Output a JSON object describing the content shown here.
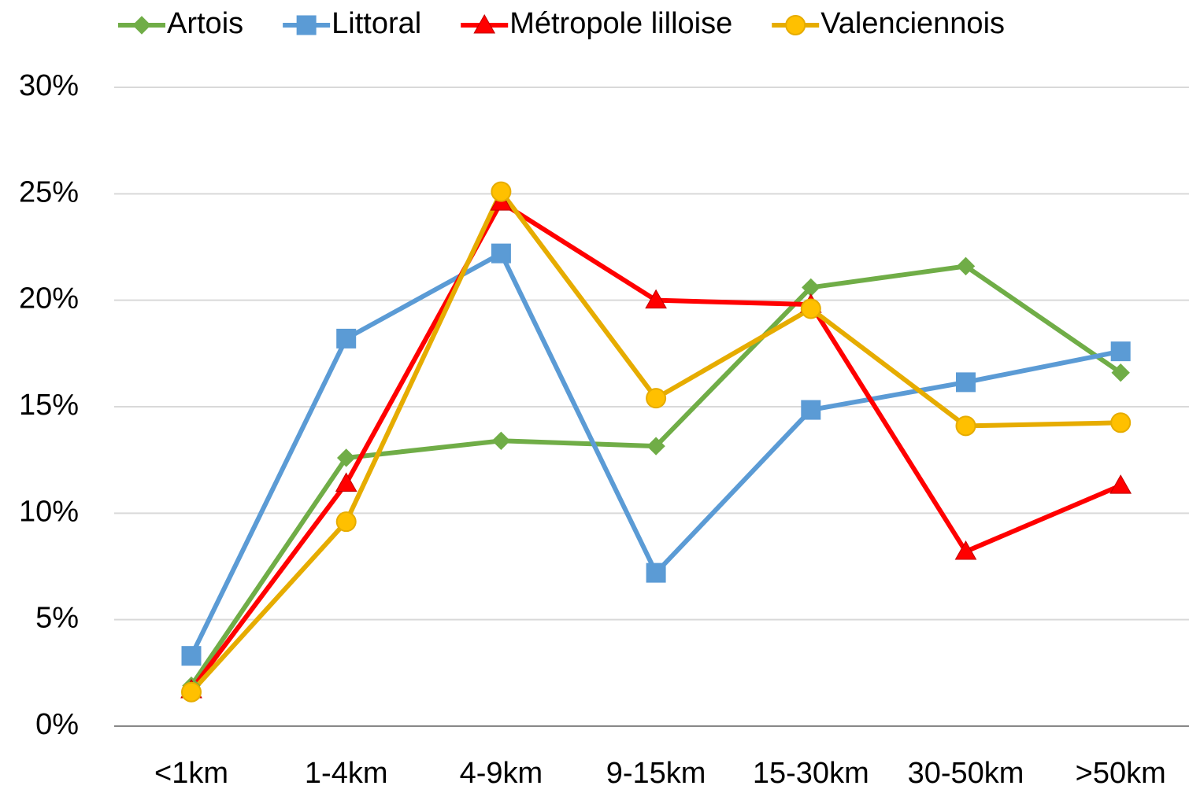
{
  "chart_data": {
    "type": "line",
    "categories": [
      "<1km",
      "1-4km",
      "4-9km",
      "9-15km",
      "15-30km",
      "30-50km",
      ">50km"
    ],
    "series": [
      {
        "name": "Artois",
        "color": "#70ad47",
        "marker": "diamond",
        "values": [
          1.9,
          12.6,
          13.4,
          13.15,
          20.6,
          21.6,
          16.6
        ]
      },
      {
        "name": "Littoral",
        "color": "#5b9bd5",
        "marker": "square",
        "values": [
          3.3,
          18.2,
          22.2,
          7.2,
          14.85,
          16.15,
          17.6
        ]
      },
      {
        "name": "Métropole lilloise",
        "color": "#ff0000",
        "marker": "triangle",
        "values": [
          1.7,
          11.4,
          24.6,
          20.0,
          19.8,
          8.2,
          11.3
        ]
      },
      {
        "name": "Valenciennois",
        "color": "#e6ac00",
        "marker": "circle",
        "values": [
          1.6,
          9.6,
          25.1,
          15.4,
          19.6,
          14.1,
          14.25
        ]
      }
    ],
    "ylim": [
      0,
      30
    ],
    "yticks": [
      {
        "value": 0,
        "label": "0%"
      },
      {
        "value": 5,
        "label": "5%"
      },
      {
        "value": 10,
        "label": "10%"
      },
      {
        "value": 15,
        "label": "15%"
      },
      {
        "value": 20,
        "label": "20%"
      },
      {
        "value": 25,
        "label": "25%"
      },
      {
        "value": 30,
        "label": "30%"
      }
    ],
    "grid": true,
    "legend": "top"
  }
}
